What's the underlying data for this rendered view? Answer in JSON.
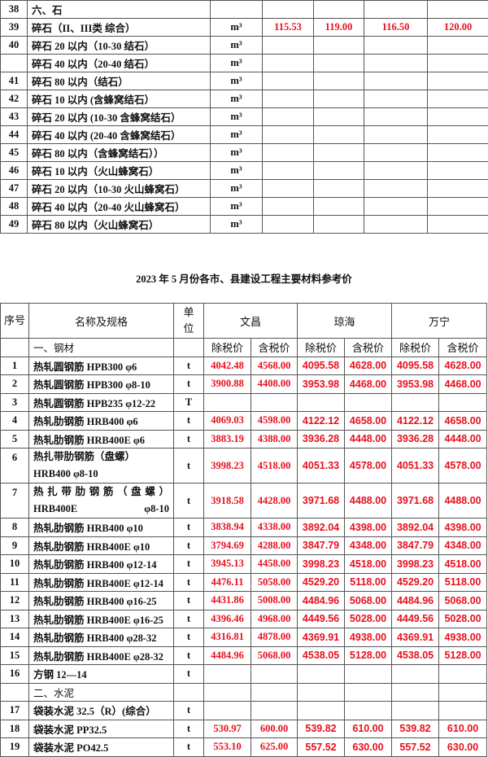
{
  "top_table": {
    "rows": [
      {
        "no": "38",
        "name": "六、石",
        "unit": "",
        "v": [
          "",
          "",
          "",
          ""
        ]
      },
      {
        "no": "39",
        "name": "碎石（II、III类  综合）",
        "unit": "m³",
        "v": [
          "115.53",
          "119.00",
          "116.50",
          "120.00"
        ]
      },
      {
        "no": "40",
        "name": "碎石 20 以内（10-30 结石）",
        "unit": "m³",
        "v": [
          "",
          "",
          "",
          ""
        ]
      },
      {
        "no": "",
        "name": "碎石 40 以内（20-40 结石）",
        "unit": "m³",
        "v": [
          "",
          "",
          "",
          ""
        ]
      },
      {
        "no": "41",
        "name": "碎石 80 以内（结石）",
        "unit": "m³",
        "v": [
          "",
          "",
          "",
          ""
        ]
      },
      {
        "no": "42",
        "name": "碎石 10 以内 (含蜂窝结石）",
        "unit": "m³",
        "v": [
          "",
          "",
          "",
          ""
        ]
      },
      {
        "no": "43",
        "name": "碎石 20 以内 (10-30 含蜂窝结石）",
        "unit": "m³",
        "v": [
          "",
          "",
          "",
          ""
        ]
      },
      {
        "no": "44",
        "name": "碎石 40 以内 (20-40 含蜂窝结石）",
        "unit": "m³",
        "v": [
          "",
          "",
          "",
          ""
        ]
      },
      {
        "no": "45",
        "name": "碎石 80 以内（含蜂窝结石））",
        "unit": "m³",
        "v": [
          "",
          "",
          "",
          ""
        ]
      },
      {
        "no": "46",
        "name": "碎石 10 以内（火山蜂窝石）",
        "unit": "m³",
        "v": [
          "",
          "",
          "",
          ""
        ]
      },
      {
        "no": "47",
        "name": "碎石 20 以内（10-30 火山蜂窝石）",
        "unit": "m³",
        "v": [
          "",
          "",
          "",
          ""
        ]
      },
      {
        "no": "48",
        "name": "碎石 40 以内（20-40 火山蜂窝石）",
        "unit": "m³",
        "v": [
          "",
          "",
          "",
          ""
        ]
      },
      {
        "no": "49",
        "name": "碎石 80 以内（火山蜂窝石）",
        "unit": "m³",
        "v": [
          "",
          "",
          "",
          ""
        ]
      }
    ]
  },
  "title": "2023 年 5 月份各市、县建设工程主要材料参考价",
  "main_table": {
    "headers": {
      "no": "序号",
      "name": "名称及规格",
      "unit": "单位",
      "cities": [
        "文昌",
        "琼海",
        "万宁"
      ],
      "ex_tax": "除税价",
      "inc_tax": "含税价"
    },
    "rows": [
      {
        "no": "",
        "name": "一、钢材",
        "unit": "",
        "v": [
          "",
          "",
          "",
          "",
          "",
          ""
        ],
        "section": true
      },
      {
        "no": "1",
        "name": "热轧圆钢筋 HPB300 φ6",
        "unit": "t",
        "v": [
          "4042.48",
          "4568.00",
          "4095.58",
          "4628.00",
          "4095.58",
          "4628.00"
        ]
      },
      {
        "no": "2",
        "name": "热轧圆钢筋 HPB300 φ8-10",
        "unit": "t",
        "v": [
          "3900.88",
          "4408.00",
          "3953.98",
          "4468.00",
          "3953.98",
          "4468.00"
        ]
      },
      {
        "no": "3",
        "name": "热轧圆钢筋 HPB235 φ12-22",
        "unit": "T",
        "v": [
          "",
          "",
          "",
          "",
          "",
          ""
        ]
      },
      {
        "no": "4",
        "name": "热轧肋钢筋 HRB400 φ6",
        "unit": "t",
        "v": [
          "4069.03",
          "4598.00",
          "4122.12",
          "4658.00",
          "4122.12",
          "4658.00"
        ]
      },
      {
        "no": "5",
        "name": "热轧肋钢筋 HRB400E φ6",
        "unit": "t",
        "v": [
          "3883.19",
          "4388.00",
          "3936.28",
          "4448.00",
          "3936.28",
          "4448.00"
        ]
      },
      {
        "no": "6",
        "name": "热扎带肋钢筋（盘螺）HRB400 φ8-10",
        "unit": "t",
        "v": [
          "3998.23",
          "4518.00",
          "4051.33",
          "4578.00",
          "4051.33",
          "4578.00"
        ],
        "tall": true
      },
      {
        "no": "7",
        "name": "热扎带肋钢筋（盘螺）HRB400E φ8-10",
        "unit": "t",
        "v": [
          "3918.58",
          "4428.00",
          "3971.68",
          "4488.00",
          "3971.68",
          "4488.00"
        ],
        "tall": true
      },
      {
        "no": "8",
        "name": "热轧肋钢筋 HRB400 φ10",
        "unit": "t",
        "v": [
          "3838.94",
          "4338.00",
          "3892.04",
          "4398.00",
          "3892.04",
          "4398.00"
        ]
      },
      {
        "no": "9",
        "name": "热轧肋钢筋 HRB400E φ10",
        "unit": "t",
        "v": [
          "3794.69",
          "4288.00",
          "3847.79",
          "4348.00",
          "3847.79",
          "4348.00"
        ]
      },
      {
        "no": "10",
        "name": "热轧肋钢筋 HRB400 φ12-14",
        "unit": "t",
        "v": [
          "3945.13",
          "4458.00",
          "3998.23",
          "4518.00",
          "3998.23",
          "4518.00"
        ]
      },
      {
        "no": "11",
        "name": "热轧肋钢筋 HRB400E φ12-14",
        "unit": "t",
        "v": [
          "4476.11",
          "5058.00",
          "4529.20",
          "5118.00",
          "4529.20",
          "5118.00"
        ]
      },
      {
        "no": "12",
        "name": "热轧肋钢筋 HRB400 φ16-25",
        "unit": "t",
        "v": [
          "4431.86",
          "5008.00",
          "4484.96",
          "5068.00",
          "4484.96",
          "5068.00"
        ]
      },
      {
        "no": "13",
        "name": "热轧肋钢筋 HRB400E φ16-25",
        "unit": "t",
        "v": [
          "4396.46",
          "4968.00",
          "4449.56",
          "5028.00",
          "4449.56",
          "5028.00"
        ]
      },
      {
        "no": "14",
        "name": "热轧肋钢筋 HRB400 φ28-32",
        "unit": "t",
        "v": [
          "4316.81",
          "4878.00",
          "4369.91",
          "4938.00",
          "4369.91",
          "4938.00"
        ]
      },
      {
        "no": "15",
        "name": "热轧肋钢筋 HRB400E φ28-32",
        "unit": "t",
        "v": [
          "4484.96",
          "5068.00",
          "4538.05",
          "5128.00",
          "4538.05",
          "5128.00"
        ]
      },
      {
        "no": "16",
        "name": "方钢 12—14",
        "unit": "t",
        "v": [
          "",
          "",
          "",
          "",
          "",
          ""
        ]
      },
      {
        "no": "",
        "name": "二、水泥",
        "unit": "",
        "v": [
          "",
          "",
          "",
          "",
          "",
          ""
        ],
        "section": true
      },
      {
        "no": "17",
        "name": "袋装水泥 32.5（R）(综合）",
        "unit": "t",
        "v": [
          "",
          "",
          "",
          "",
          "",
          ""
        ]
      },
      {
        "no": "18",
        "name": "袋装水泥 PP32.5",
        "unit": "t",
        "v": [
          "530.97",
          "600.00",
          "539.82",
          "610.00",
          "539.82",
          "610.00"
        ]
      },
      {
        "no": "19",
        "name": "袋装水泥 PO42.5",
        "unit": "t",
        "v": [
          "553.10",
          "625.00",
          "557.52",
          "630.00",
          "557.52",
          "630.00"
        ]
      }
    ]
  },
  "colors": {
    "price": "#e8101e",
    "text": "#111111",
    "border": "#555555"
  }
}
